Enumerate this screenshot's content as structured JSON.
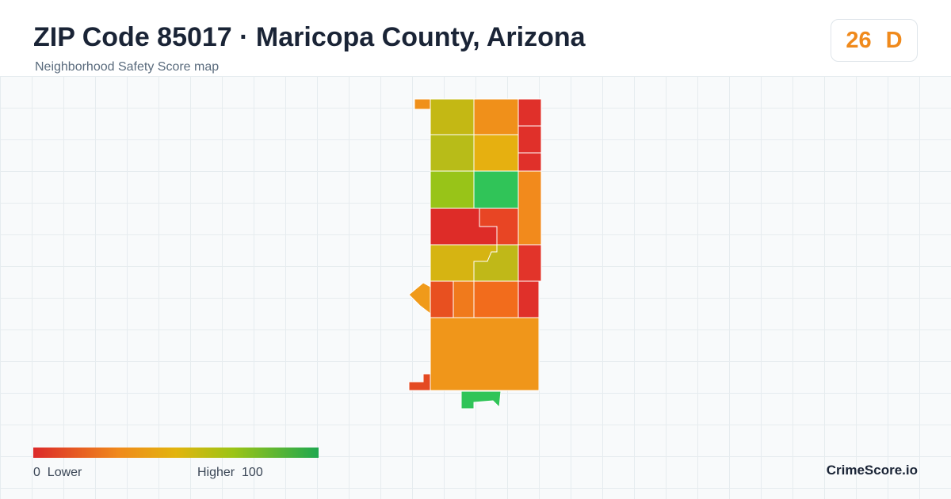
{
  "header": {
    "title": "ZIP Code 85017 · Maricopa County, Arizona",
    "subtitle": "Neighborhood Safety Score map"
  },
  "score": {
    "value": 26,
    "grade": "D"
  },
  "legend": {
    "min": 0,
    "min_label": "Lower",
    "max_label": "Higher",
    "max": 100
  },
  "brand": "CrimeScore.io"
}
